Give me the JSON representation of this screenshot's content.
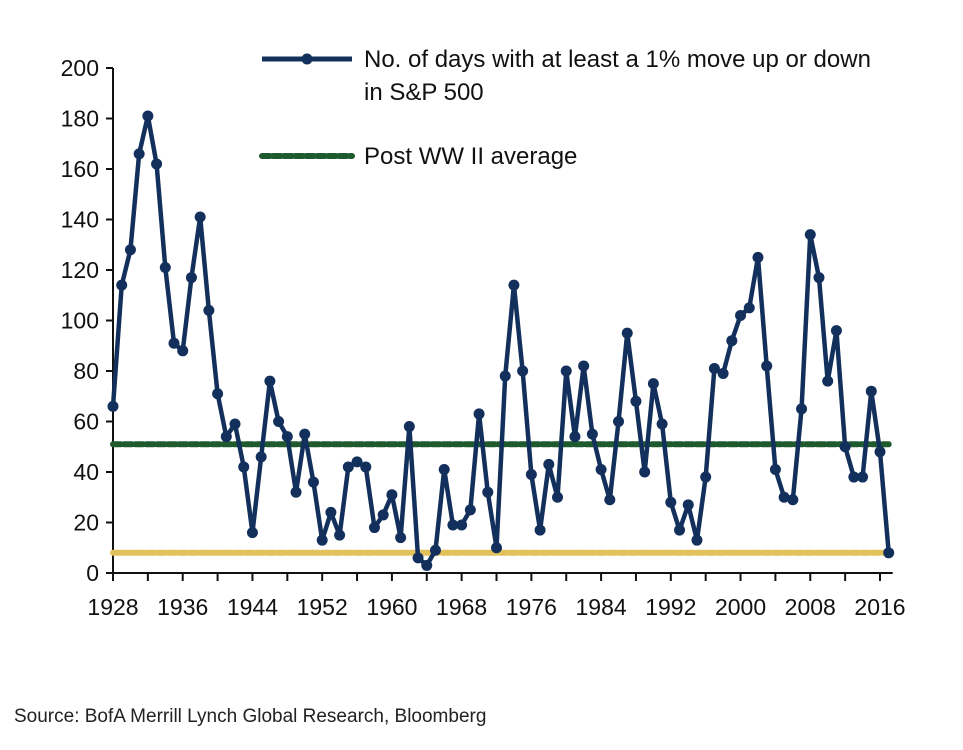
{
  "chart_data": {
    "type": "line",
    "title": "",
    "xlabel": "",
    "ylabel": "",
    "ylim": [
      0,
      200
    ],
    "xlim": [
      1928,
      2017
    ],
    "yticks": [
      "0",
      "20",
      "40",
      "60",
      "80",
      "100",
      "120",
      "140",
      "160",
      "180",
      "200"
    ],
    "xticks": [
      "1928",
      "1936",
      "1944",
      "1952",
      "1960",
      "1968",
      "1976",
      "1984",
      "1992",
      "2000",
      "2008",
      "2016"
    ],
    "grid": false,
    "legend_position": "top-right",
    "series": [
      {
        "name": "No. of days with at least a 1% move up or down in S&P 500",
        "legend_lines": [
          "No. of days with at least a 1% move up or down",
          "in S&P 500"
        ],
        "color": "#13305c",
        "x_start": 1928,
        "values": [
          66,
          114,
          128,
          166,
          181,
          162,
          121,
          91,
          88,
          117,
          141,
          104,
          71,
          54,
          59,
          42,
          16,
          46,
          76,
          60,
          54,
          32,
          55,
          36,
          13,
          24,
          15,
          42,
          44,
          42,
          18,
          23,
          31,
          14,
          58,
          6,
          3,
          9,
          41,
          19,
          19,
          25,
          63,
          32,
          10,
          78,
          114,
          80,
          39,
          17,
          43,
          30,
          80,
          54,
          82,
          55,
          41,
          29,
          60,
          95,
          68,
          40,
          75,
          59,
          28,
          17,
          27,
          13,
          38,
          81,
          79,
          92,
          102,
          105,
          125,
          82,
          41,
          30,
          29,
          65,
          134,
          117,
          76,
          96,
          50,
          38,
          38,
          72,
          48,
          8
        ]
      },
      {
        "name": "Post WW II average",
        "color": "#1e5a2e",
        "value": 51
      },
      {
        "name": "",
        "color": "#e3c15a",
        "value": 8
      }
    ],
    "source": "Source: BofA Merrill Lynch Global Research, Bloomberg"
  }
}
